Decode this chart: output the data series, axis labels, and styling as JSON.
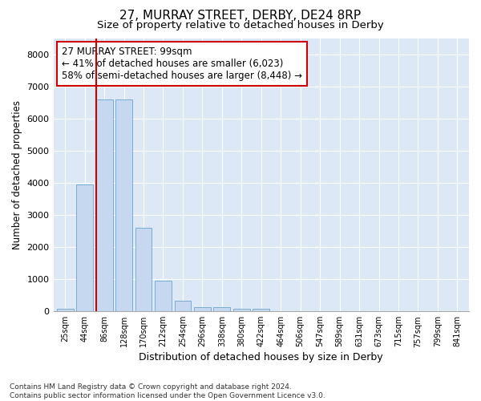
{
  "title_line1": "27, MURRAY STREET, DERBY, DE24 8RP",
  "title_line2": "Size of property relative to detached houses in Derby",
  "xlabel": "Distribution of detached houses by size in Derby",
  "ylabel": "Number of detached properties",
  "bar_color": "#c5d8f0",
  "bar_edge_color": "#7aadd4",
  "background_color": "#dce8f5",
  "grid_color": "#ffffff",
  "vline_color": "#cc0000",
  "annotation_text": "27 MURRAY STREET: 99sqm\n← 41% of detached houses are smaller (6,023)\n58% of semi-detached houses are larger (8,448) →",
  "bin_labels": [
    "25sqm",
    "44sqm",
    "86sqm",
    "128sqm",
    "170sqm",
    "212sqm",
    "254sqm",
    "296sqm",
    "338sqm",
    "380sqm",
    "422sqm",
    "464sqm",
    "506sqm",
    "547sqm",
    "589sqm",
    "631sqm",
    "673sqm",
    "715sqm",
    "757sqm",
    "799sqm",
    "841sqm"
  ],
  "bar_heights": [
    70,
    3950,
    6600,
    6600,
    2600,
    950,
    320,
    130,
    120,
    70,
    70,
    0,
    0,
    0,
    0,
    0,
    0,
    0,
    0,
    0,
    0
  ],
  "ylim": [
    0,
    8500
  ],
  "yticks": [
    0,
    1000,
    2000,
    3000,
    4000,
    5000,
    6000,
    7000,
    8000
  ],
  "footnote": "Contains HM Land Registry data © Crown copyright and database right 2024.\nContains public sector information licensed under the Open Government Licence v3.0.",
  "fig_bg": "#ffffff",
  "vline_bar_idx": 2
}
